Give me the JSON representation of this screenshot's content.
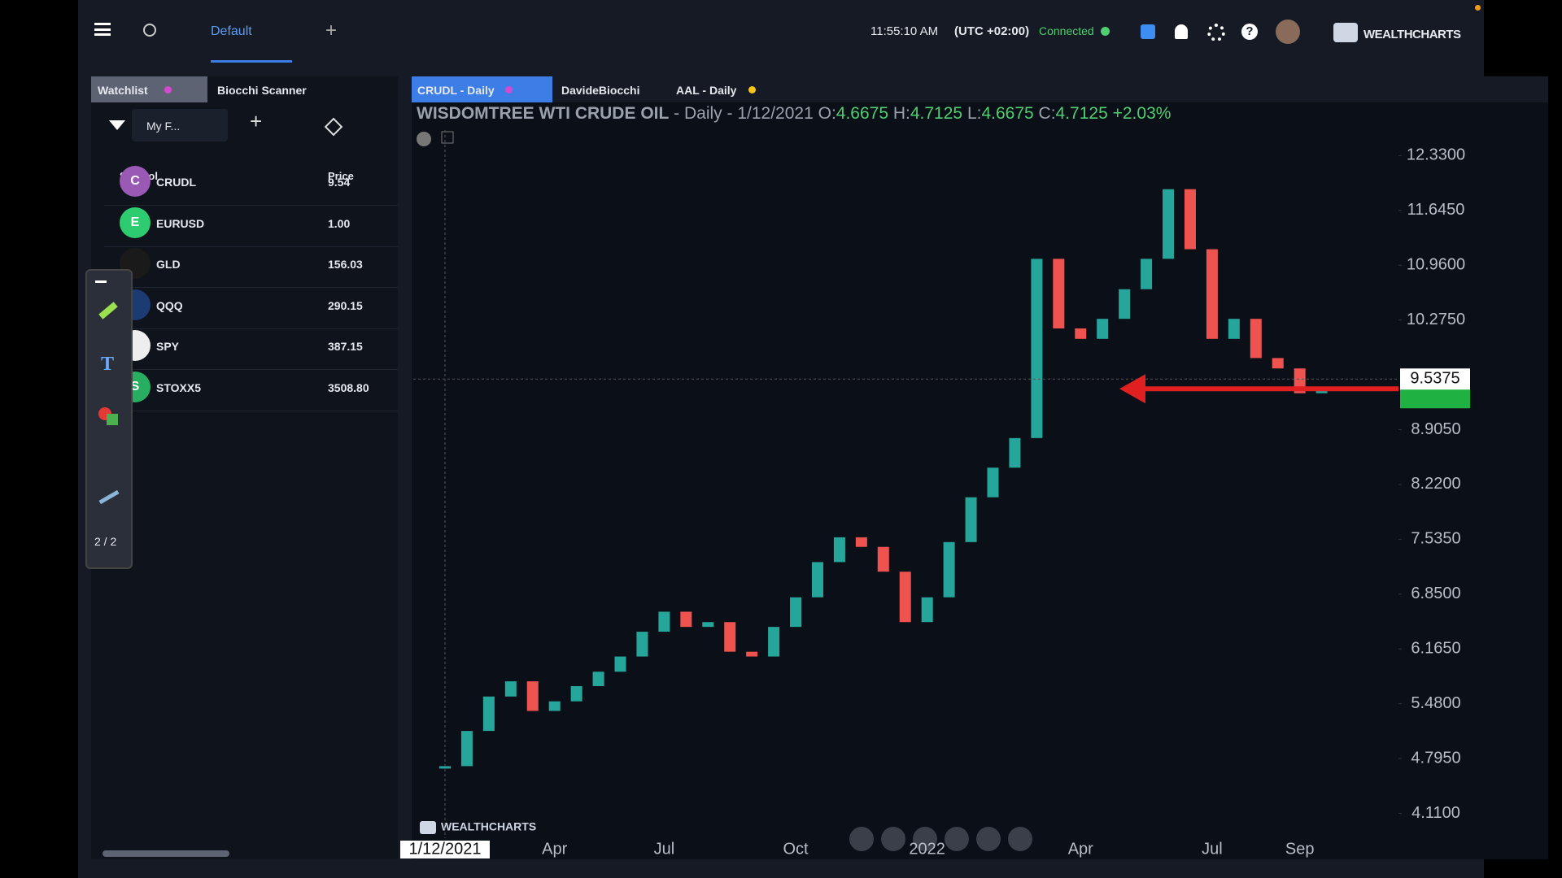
{
  "topbar": {
    "tab": "Default",
    "time": "11:55:10 AM",
    "timezone": "(UTC +02:00)",
    "status": "Connected",
    "brand": "WEALTHCHARTS"
  },
  "sidebar": {
    "tabs": [
      "Watchlist",
      "Biocchi Scanner"
    ],
    "list_name": "My F...",
    "columns": [
      "Symbol",
      "Price"
    ],
    "rows": [
      {
        "icon": "C",
        "symbol": "CRUDL",
        "price": "9.54"
      },
      {
        "icon": "E",
        "symbol": "EURUSD",
        "price": "1.00"
      },
      {
        "symbol": "GLD",
        "price": "156.03"
      },
      {
        "symbol": "QQQ",
        "price": "290.15"
      },
      {
        "symbol": "SPY",
        "price": "387.15"
      },
      {
        "icon": "S",
        "symbol": "STOXX5",
        "price": "3508.80"
      }
    ]
  },
  "drawing_toolbar": {
    "page": "2 / 2"
  },
  "chart_tabs": [
    "CRUDL - Daily",
    "DavideBiocchi",
    "AAL - Daily"
  ],
  "header": {
    "name": "WISDOMTREE WTI CRUDE OIL",
    "interval": "- Daily - 1/12/2021",
    "o_label": "O:",
    "o": "4.6675",
    "h_label": "H:",
    "h": "4.7125",
    "l_label": "L:",
    "l": "4.6675",
    "c_label": "C:",
    "c": "4.7125",
    "change": "+2.03%"
  },
  "watermark": "WEALTHCHARTS",
  "chart_data": {
    "type": "candlestick",
    "categories": [
      "1/12/2021",
      null,
      null,
      null,
      null,
      "Apr",
      null,
      null,
      null,
      null,
      "Jul",
      null,
      null,
      null,
      null,
      null,
      "Oct",
      null,
      null,
      null,
      null,
      null,
      "2022",
      null,
      null,
      null,
      null,
      null,
      null,
      "Apr",
      null,
      null,
      null,
      null,
      null,
      "Jul",
      null,
      null,
      null,
      "Sep",
      null
    ],
    "values": [
      4.7,
      5.14,
      5.57,
      5.76,
      5.39,
      5.51,
      5.7,
      5.88,
      6.07,
      6.38,
      6.63,
      6.44,
      6.5,
      6.13,
      6.07,
      6.44,
      6.81,
      7.25,
      7.56,
      7.44,
      7.13,
      6.5,
      6.81,
      7.5,
      8.06,
      8.43,
      8.8,
      11.04,
      10.17,
      10.04,
      10.29,
      10.66,
      11.04,
      11.91,
      11.16,
      10.04,
      10.29,
      9.8,
      9.67,
      9.36,
      9.42
    ],
    "up_color": "#26a69a",
    "down_color": "#ef5350",
    "ylim": [
      3.8,
      12.72
    ],
    "yticks": [
      {
        "value": 12.33,
        "label": "12.3300"
      },
      {
        "value": 11.645,
        "label": "11.6450"
      },
      {
        "value": 10.96,
        "label": "10.9600"
      },
      {
        "value": 10.275,
        "label": "10.2750"
      },
      {
        "value": 8.905,
        "label": "8.9050"
      },
      {
        "value": 8.22,
        "label": "8.2200"
      },
      {
        "value": 7.535,
        "label": "7.5350"
      },
      {
        "value": 6.85,
        "label": "6.8500"
      },
      {
        "value": 6.165,
        "label": "6.1650"
      },
      {
        "value": 5.48,
        "label": "5.4800"
      },
      {
        "value": 4.795,
        "label": "4.7950"
      },
      {
        "value": 4.11,
        "label": "4.1100"
      }
    ],
    "price_marker": {
      "value": 9.5375,
      "label": "9.5375"
    }
  }
}
